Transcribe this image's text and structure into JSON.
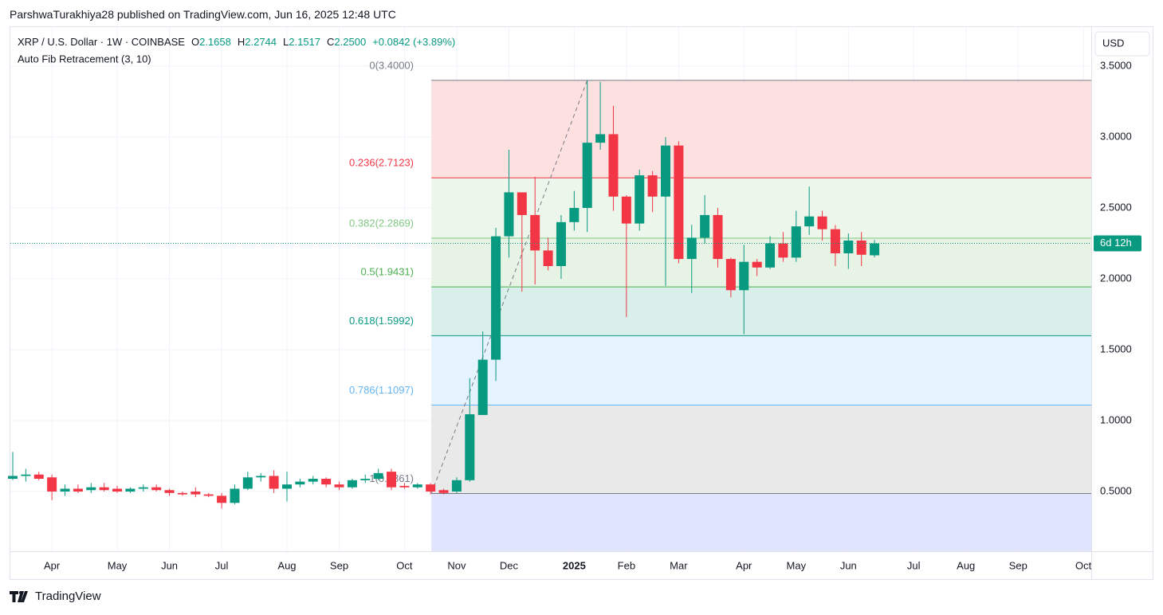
{
  "attribution": "ParshwaTurakhiya28 published on TradingView.com, Jun 16, 2025 12:48 UTC",
  "brand": "TradingView",
  "chart_data": {
    "type": "candlestick",
    "symbol": "XRP / U.S. Dollar · 1W · COINBASE",
    "legend": [
      {
        "key": "O",
        "value": "2.1658"
      },
      {
        "key": "H",
        "value": "2.2744"
      },
      {
        "key": "L",
        "value": "2.1517"
      },
      {
        "key": "C",
        "value": "2.2500"
      }
    ],
    "change": "+0.0842 (+3.89%)",
    "currency": "USD",
    "countdown": "6d 12h",
    "up_color": "#089981",
    "down_color": "#f23645",
    "grid": true,
    "categories": [
      null,
      null,
      null,
      "Apr",
      null,
      null,
      null,
      null,
      "May",
      null,
      null,
      null,
      "Jun",
      null,
      null,
      null,
      "Jul",
      null,
      null,
      null,
      null,
      "Aug",
      null,
      null,
      null,
      "Sep",
      null,
      null,
      null,
      null,
      "Oct",
      null,
      null,
      null,
      "Nov",
      null,
      null,
      null,
      "Dec",
      null,
      null,
      null,
      null,
      "2025",
      null,
      null,
      null,
      "Feb",
      null,
      null,
      null,
      "Mar",
      null,
      null,
      null,
      null,
      "Apr",
      null,
      null,
      null,
      "May",
      null,
      null,
      null,
      "Jun",
      null,
      null,
      null,
      null,
      "Jul",
      null,
      null,
      null,
      "Aug",
      null,
      null,
      null,
      "Sep",
      null,
      null,
      null,
      null,
      "Oct"
    ],
    "open": [
      0.59,
      0.61,
      0.62,
      0.6,
      0.5,
      0.52,
      0.51,
      0.53,
      0.52,
      0.5,
      0.52,
      0.53,
      0.51,
      0.49,
      0.5,
      0.48,
      0.47,
      0.42,
      0.52,
      0.6,
      0.61,
      0.52,
      0.55,
      0.57,
      0.59,
      0.55,
      0.53,
      0.58,
      0.59,
      0.64,
      0.54,
      0.53,
      0.55,
      0.51,
      0.5,
      0.58,
      1.04,
      1.43,
      2.3,
      2.61,
      2.45,
      2.2,
      2.09,
      2.4,
      2.5,
      2.96,
      3.02,
      2.58,
      2.39,
      2.73,
      2.58,
      2.94,
      2.14,
      2.29,
      2.45,
      2.14,
      1.92,
      2.12,
      2.08,
      2.25,
      2.15,
      2.37,
      2.44,
      2.35,
      2.18,
      2.27,
      2.1658,
      null,
      null,
      null,
      null,
      null,
      null,
      null,
      null,
      null,
      null,
      null,
      null,
      null,
      null,
      null,
      null
    ],
    "high": [
      0.78,
      0.66,
      0.64,
      0.62,
      0.55,
      0.55,
      0.56,
      0.56,
      0.54,
      0.53,
      0.55,
      0.55,
      0.52,
      0.5,
      0.53,
      0.49,
      0.49,
      0.55,
      0.64,
      0.63,
      0.65,
      0.64,
      0.59,
      0.61,
      0.6,
      0.57,
      0.59,
      0.62,
      0.66,
      0.66,
      0.56,
      0.56,
      0.56,
      0.52,
      0.6,
      1.3,
      1.63,
      2.36,
      2.91,
      2.61,
      2.72,
      2.29,
      2.45,
      2.62,
      3.4,
      3.39,
      3.22,
      2.59,
      2.77,
      2.76,
      3.0,
      2.97,
      2.38,
      2.59,
      2.5,
      2.15,
      2.24,
      2.14,
      2.3,
      2.33,
      2.48,
      2.65,
      2.48,
      2.38,
      2.32,
      2.33,
      2.2744,
      null,
      null,
      null,
      null,
      null,
      null,
      null,
      null,
      null,
      null,
      null,
      null,
      null,
      null,
      null,
      null
    ],
    "low": [
      0.58,
      0.57,
      0.58,
      0.44,
      0.47,
      0.49,
      0.49,
      0.5,
      0.49,
      0.49,
      0.5,
      0.5,
      0.47,
      0.47,
      0.46,
      0.46,
      0.38,
      0.41,
      0.51,
      0.57,
      0.49,
      0.43,
      0.53,
      0.55,
      0.53,
      0.51,
      0.52,
      0.56,
      0.58,
      0.51,
      0.52,
      0.52,
      0.48,
      0.48,
      0.49,
      0.57,
      1.05,
      1.28,
      2.15,
      1.91,
      1.96,
      2.06,
      2.0,
      2.34,
      2.33,
      2.91,
      2.48,
      1.73,
      2.34,
      2.47,
      1.95,
      2.11,
      1.9,
      2.25,
      2.08,
      1.87,
      1.61,
      2.02,
      2.07,
      2.12,
      2.12,
      2.31,
      2.27,
      2.09,
      2.07,
      2.09,
      2.1517,
      null,
      null,
      null,
      null,
      null,
      null,
      null,
      null,
      null,
      null,
      null,
      null,
      null,
      null,
      null,
      null
    ],
    "close": [
      0.61,
      0.62,
      0.59,
      0.5,
      0.52,
      0.5,
      0.53,
      0.51,
      0.5,
      0.52,
      0.53,
      0.51,
      0.49,
      0.48,
      0.48,
      0.47,
      0.42,
      0.52,
      0.6,
      0.61,
      0.52,
      0.55,
      0.57,
      0.59,
      0.55,
      0.53,
      0.58,
      0.59,
      0.63,
      0.53,
      0.53,
      0.55,
      0.5,
      0.49,
      0.58,
      1.045,
      1.43,
      2.3,
      2.61,
      2.45,
      2.2,
      2.09,
      2.4,
      2.5,
      2.96,
      3.02,
      2.58,
      2.39,
      2.73,
      2.58,
      2.94,
      2.14,
      2.29,
      2.45,
      2.14,
      1.92,
      2.12,
      2.08,
      2.25,
      2.15,
      2.37,
      2.44,
      2.35,
      2.18,
      2.27,
      2.17,
      2.25,
      null,
      null,
      null,
      null,
      null,
      null,
      null,
      null,
      null,
      null,
      null,
      null,
      null,
      null,
      null,
      null
    ],
    "ylim": [
      0.08,
      3.74
    ],
    "yticks": [
      {
        "value": 0.5,
        "label": "0.5000"
      },
      {
        "value": 1.0,
        "label": "1.0000"
      },
      {
        "value": 1.5,
        "label": "1.5000"
      },
      {
        "value": 2.0,
        "label": "2.0000"
      },
      {
        "value": 2.5,
        "label": "2.5000"
      },
      {
        "value": 3.0,
        "label": "3.0000"
      },
      {
        "value": 3.5,
        "label": "3.5000"
      }
    ],
    "fib": {
      "name": "Auto Fib Retracement (3, 10)",
      "levels": [
        {
          "value": 3.4,
          "label": "0(3.4000)",
          "color": "#787b86",
          "fill": "#fde0e0"
        },
        {
          "value": 2.7123,
          "label": "0.236(2.7123)",
          "color": "#f23645",
          "fill": "#ecf6ea"
        },
        {
          "value": 2.2869,
          "label": "0.382(2.2869)",
          "color": "#81c784",
          "fill": "#e7f3e4"
        },
        {
          "value": 1.9431,
          "label": "0.5(1.9431)",
          "color": "#4caf50",
          "fill": "#d9efea"
        },
        {
          "value": 1.5992,
          "label": "0.618(1.5992)",
          "color": "#089981",
          "fill": "#e4f3fd"
        },
        {
          "value": 1.1097,
          "label": "0.786(1.1097)",
          "color": "#64b5f6",
          "fill": "#e9e9ea"
        },
        {
          "value": 0.4861,
          "label": "1(0.4861)",
          "color": "#787b86",
          "fill": "#e0e4fd"
        }
      ]
    }
  }
}
